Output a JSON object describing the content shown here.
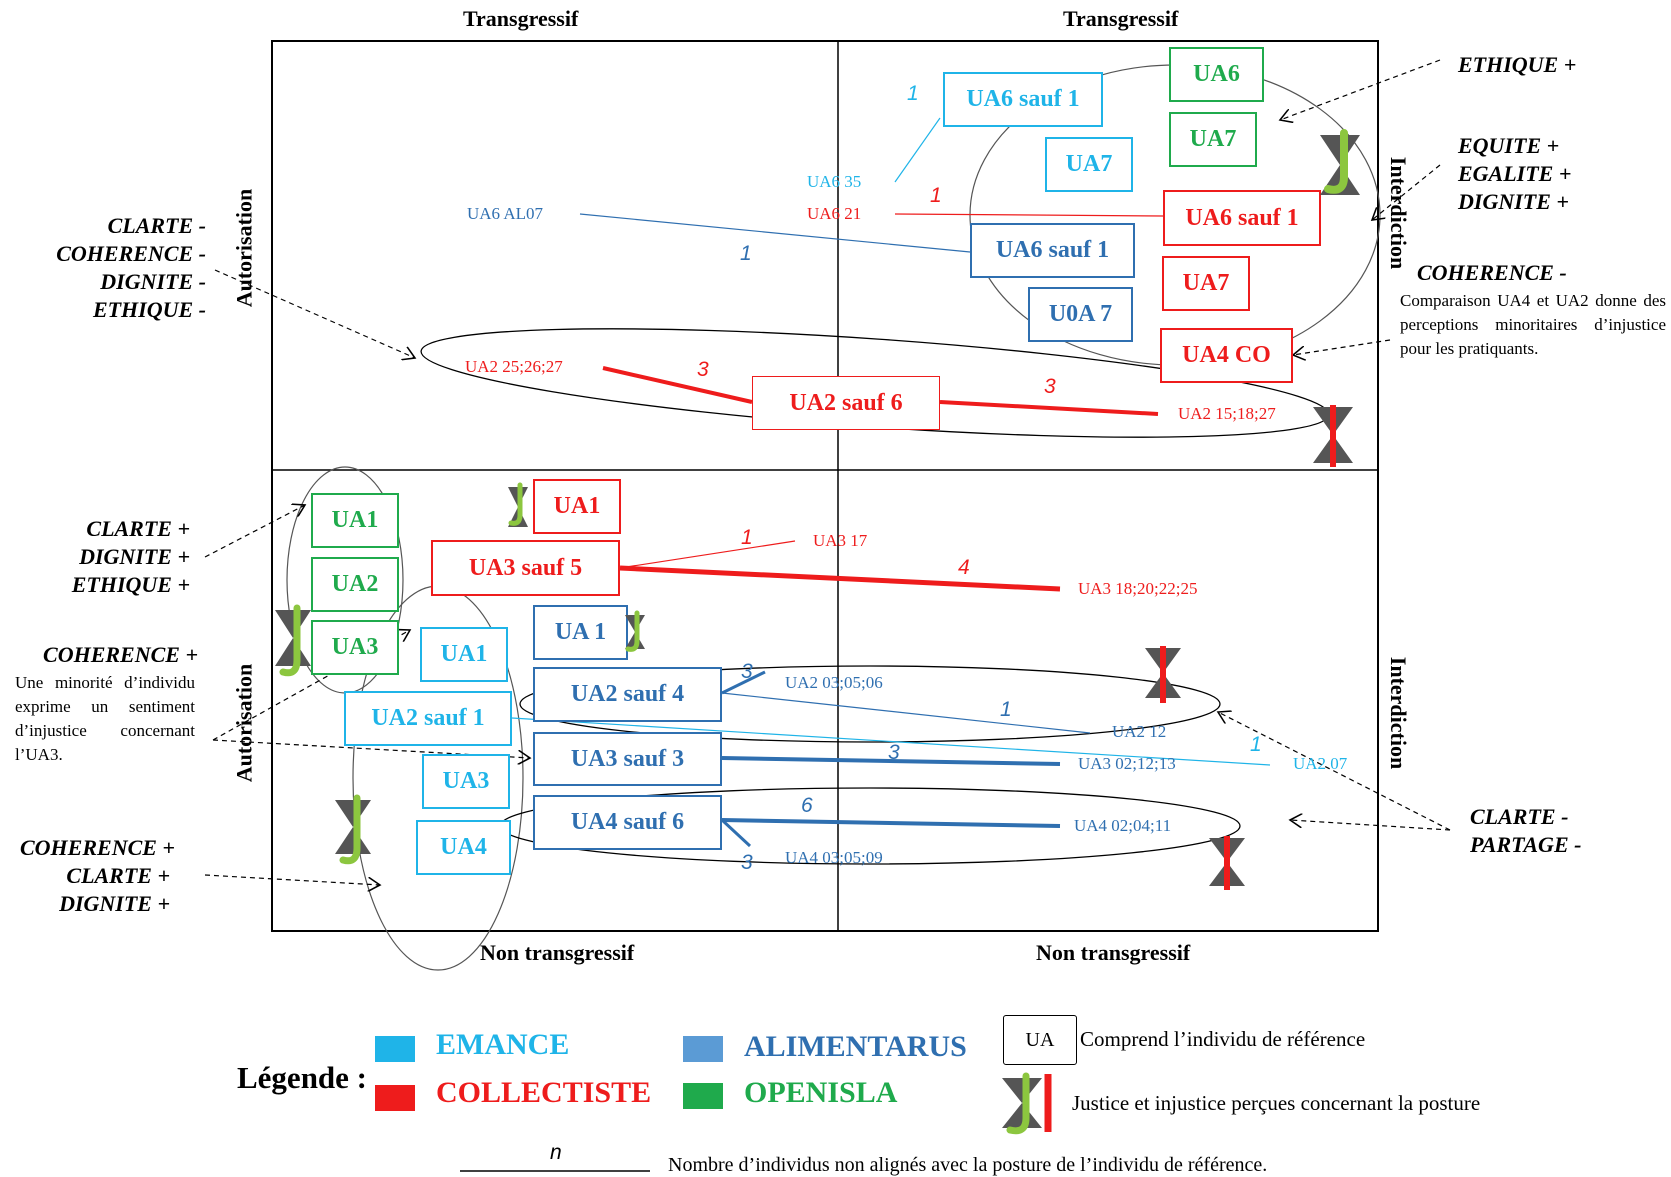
{
  "axes": {
    "top_left": "Transgressif",
    "top_right": "Transgressif",
    "bottom_left": "Non transgressif",
    "bottom_right": "Non transgressif",
    "left_top": "Autorisation",
    "left_bottom": "Autorisation",
    "right_top": "Interdiction",
    "right_bottom": "Interdiction"
  },
  "notes": {
    "left_1": [
      "CLARTE -",
      "COHERENCE -",
      "DIGNITE -",
      "ETHIQUE -"
    ],
    "left_2": [
      "CLARTE +",
      "DIGNITE +",
      "ETHIQUE +"
    ],
    "left_3_title": "COHERENCE +",
    "left_3_text": "Une minorité d’individu exprime un sentiment d’injustice concernant l’UA3.",
    "left_4": [
      "COHERENCE +",
      "CLARTE +",
      "DIGNITE +"
    ],
    "right_1": "ETHIQUE +",
    "right_2": [
      "EQUITE +",
      "EGALITE +",
      "DIGNITE +"
    ],
    "right_3_title": "COHERENCE -",
    "right_3_text": "Comparaison UA4 et UA2 donne des perceptions minoritaires d’injustice pour les pratiquants.",
    "right_4": [
      "CLARTE -",
      "PARTAGE -"
    ]
  },
  "boxes": {
    "em_ua6_sauf1": "UA6 sauf 1",
    "em_ua7": "UA7",
    "op_ua6": "UA6",
    "op_ua7": "UA7",
    "co_ua6_sauf1": "UA6 sauf 1",
    "al_ua6_sauf1": "UA6 sauf 1",
    "co_ua7": "UA7",
    "al_u0a7": "U0A 7",
    "co_ua4co": "UA4 CO",
    "co_ua2_sauf6": "UA2 sauf 6",
    "op_ua1": "UA1",
    "op_ua2": "UA2",
    "op_ua3": "UA3",
    "co_ua1": "UA1",
    "co_ua3_sauf5": "UA3 sauf 5",
    "al_ua1": "UA 1",
    "em_ua1": "UA1",
    "em_ua2_sauf1": "UA2 sauf 1",
    "al_ua2_sauf4": "UA2 sauf 4",
    "em_ua3": "UA3",
    "al_ua3_sauf3": "UA3 sauf 3",
    "em_ua4": "UA4",
    "al_ua4_sauf6": "UA4 sauf 6"
  },
  "labels": {
    "ua6_35": "UA6 35",
    "ua6_21": "UA6 21",
    "ua6_al07": "UA6 AL07",
    "ua2_252627": "UA2 25;26;27",
    "ua2_151827": "UA2 15;18;27",
    "ua3_17": "UA3 17",
    "ua3_18202225": "UA3 18;20;22;25",
    "ua2_030506": "UA2 03;05;06",
    "ua2_12": "UA2 12",
    "ua2_07": "UA2 07",
    "ua3_021213": "UA3 02;12;13",
    "ua4_020411": "UA4 02;04;11",
    "ua4_030509": "UA4 03;05;09"
  },
  "counts": {
    "n_em_ua6": "1",
    "n_co_ua6": "1",
    "n_al_ua6": "1",
    "n_co_ua2_left": "3",
    "n_co_ua2_right": "3",
    "n_co_ua3_17": "1",
    "n_co_ua3_main": "4",
    "n_al_ua2_030506": "3",
    "n_al_ua2_12": "1",
    "n_em_ua2_07": "1",
    "n_al_ua3": "3",
    "n_al_ua4_main": "6",
    "n_al_ua4_030509": "3"
  },
  "legend": {
    "title": "Légende :",
    "emance": "EMANCE",
    "collectiste": "COLLECTISTE",
    "alimentarus": "ALIMENTARUS",
    "openisla": "OPENISLA",
    "ua_box": "UA",
    "ua_desc": "Comprend l’individu de référence",
    "justice_desc": "Justice et injustice perçues concernant la posture",
    "n_symbol": "n",
    "n_desc": "Nombre d’individus non alignés avec la posture de l’individu de référence."
  },
  "colors": {
    "emance": "#1fb4e8",
    "collectiste": "#ee1c1c",
    "alimentarus": "#2f6fb0",
    "openisla": "#1faa4c",
    "justice_check": "#8cc63f",
    "hourglass": "#555555"
  },
  "icons": [
    "justice-check-icon",
    "injustice-bar-icon",
    "hourglass-icon"
  ]
}
